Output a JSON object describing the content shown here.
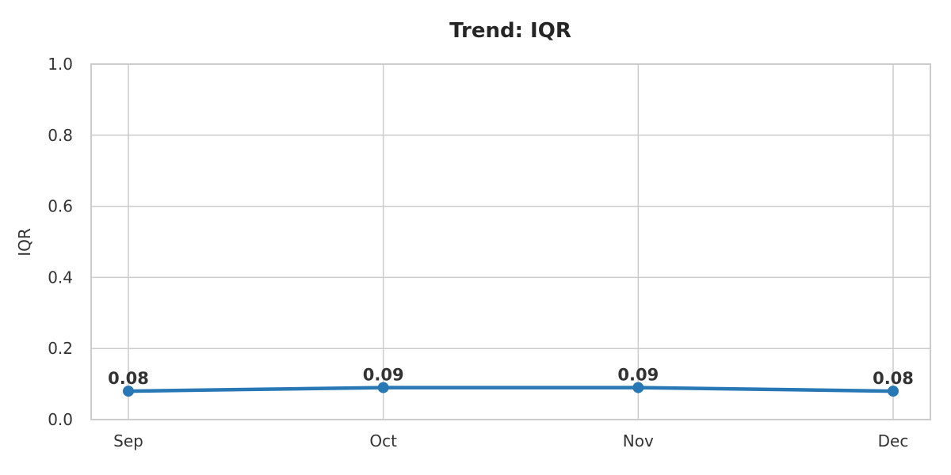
{
  "chart_data": {
    "type": "line",
    "title": "Trend: IQR",
    "xlabel": "",
    "ylabel": "IQR",
    "categories": [
      "Sep",
      "Oct",
      "Nov",
      "Dec"
    ],
    "values": [
      0.08,
      0.09,
      0.09,
      0.08
    ],
    "data_labels": [
      "0.08",
      "0.09",
      "0.09",
      "0.08"
    ],
    "ylim": [
      0.0,
      1.0
    ],
    "yticks": [
      0.0,
      0.2,
      0.4,
      0.6,
      0.8,
      1.0
    ],
    "ytick_labels": [
      "0.0",
      "0.2",
      "0.4",
      "0.6",
      "0.8",
      "1.0"
    ],
    "grid": true,
    "legend": "none",
    "colors": {
      "line": "#2878b5",
      "marker": "#2878b5",
      "grid": "#cccccc",
      "spine": "#cccccc",
      "tick_text": "#333333",
      "title_text": "#262626",
      "background": "#ffffff"
    }
  }
}
